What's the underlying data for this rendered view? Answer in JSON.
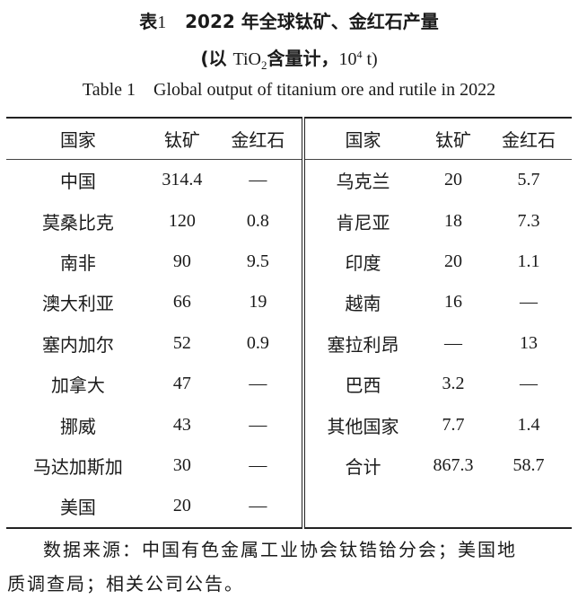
{
  "title": {
    "label": "表",
    "number": "1",
    "text": "2022 年全球钛矿、金红石产量"
  },
  "subtitle": {
    "open": "(以 ",
    "formula_main": "TiO",
    "formula_sub": "2",
    "text": "含量计，",
    "unit_base": "10",
    "unit_exp": "4",
    "unit_tail": " t)"
  },
  "english_title": "Table 1    Global output of titanium ore and rutile in 2022",
  "table": {
    "headers": [
      "国家",
      "钛矿",
      "金红石",
      "国家",
      "钛矿",
      "金红石"
    ],
    "left_rows": [
      [
        "中国",
        "314.4",
        "—"
      ],
      [
        "莫桑比克",
        "120",
        "0.8"
      ],
      [
        "南非",
        "90",
        "9.5"
      ],
      [
        "澳大利亚",
        "66",
        "19"
      ],
      [
        "塞内加尔",
        "52",
        "0.9"
      ],
      [
        "加拿大",
        "47",
        "—"
      ],
      [
        "挪威",
        "43",
        "—"
      ],
      [
        "马达加斯加",
        "30",
        "—"
      ],
      [
        "美国",
        "20",
        "—"
      ]
    ],
    "right_rows": [
      [
        "乌克兰",
        "20",
        "5.7"
      ],
      [
        "肯尼亚",
        "18",
        "7.3"
      ],
      [
        "印度",
        "20",
        "1.1"
      ],
      [
        "越南",
        "16",
        "—"
      ],
      [
        "塞拉利昂",
        "—",
        "13"
      ],
      [
        "巴西",
        "3.2",
        "—"
      ],
      [
        "其他国家",
        "7.7",
        "1.4"
      ],
      [
        "合计",
        "867.3",
        "58.7"
      ],
      [
        "",
        "",
        ""
      ]
    ]
  },
  "source_line1": "数据来源：中国有色金属工业协会钛锆铪分会；美国地",
  "source_line2": "质调查局；相关公司公告。"
}
